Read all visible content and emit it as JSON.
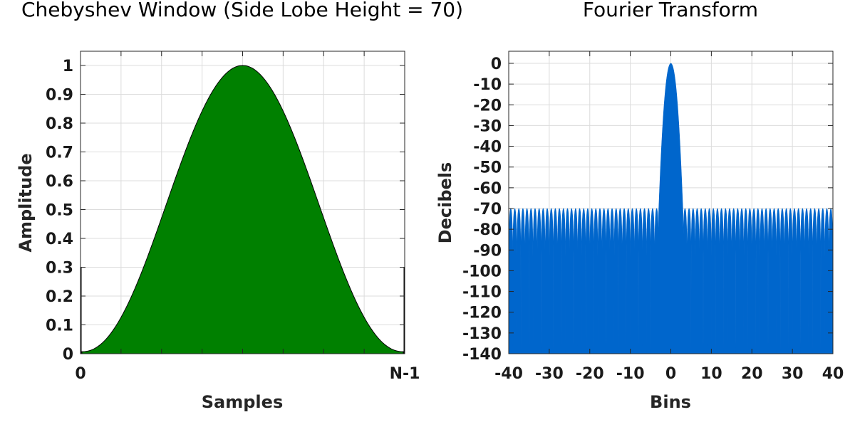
{
  "chart_data": [
    {
      "type": "area",
      "title": "Chebyshev Window (Side Lobe Height = 70)",
      "xlabel": "Samples",
      "ylabel": "Amplitude",
      "xticks": [
        "0",
        "N-1"
      ],
      "yticks": [
        "0",
        "0.1",
        "0.2",
        "0.3",
        "0.4",
        "0.5",
        "0.6",
        "0.7",
        "0.8",
        "0.9",
        "1"
      ],
      "ylim": [
        0,
        1
      ],
      "edge_value": 0.3,
      "grid": true,
      "color": "#008000"
    },
    {
      "type": "area",
      "title": "Fourier Transform",
      "xlabel": "Bins",
      "ylabel": "Decibels",
      "xticks": [
        "-40",
        "-30",
        "-20",
        "-10",
        "0",
        "10",
        "20",
        "30",
        "40"
      ],
      "yticks": [
        "0",
        "-10",
        "-20",
        "-30",
        "-40",
        "-50",
        "-60",
        "-70",
        "-80",
        "-90",
        "-100",
        "-110",
        "-120",
        "-130",
        "-140"
      ],
      "xlim": [
        -40,
        40
      ],
      "ylim": [
        -140,
        0
      ],
      "mainlobe_halfwidth_bins": 3,
      "sidelobe_peak_db": -70,
      "grid": true,
      "color": "#0066cc"
    }
  ]
}
